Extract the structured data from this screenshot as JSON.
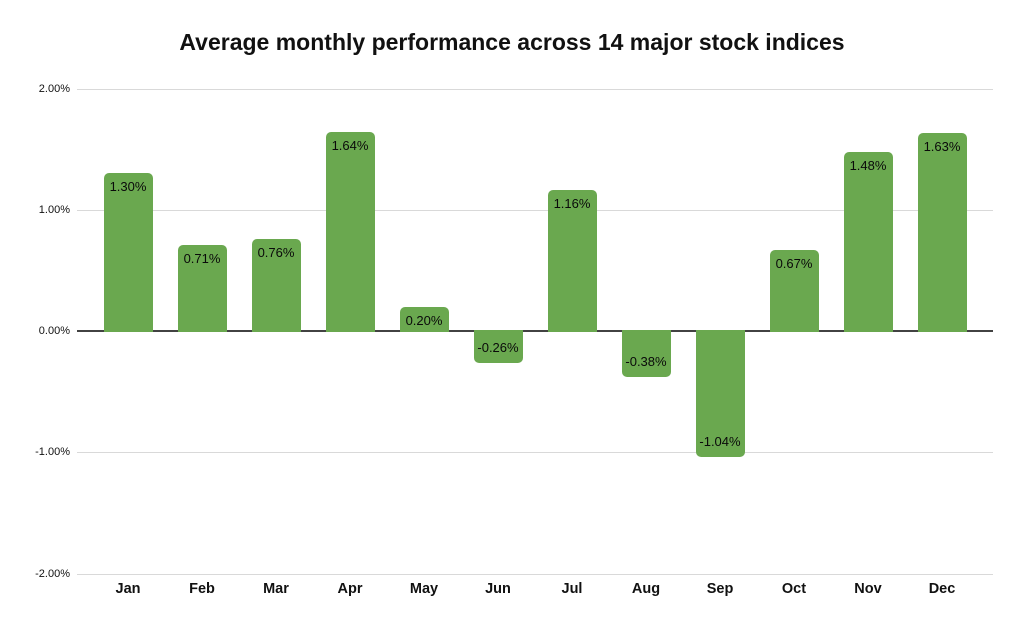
{
  "chart_data": {
    "type": "bar",
    "title": "Average monthly performance across 14 major stock indices",
    "categories": [
      "Jan",
      "Feb",
      "Mar",
      "Apr",
      "May",
      "Jun",
      "Jul",
      "Aug",
      "Sep",
      "Oct",
      "Nov",
      "Dec"
    ],
    "values": [
      1.3,
      0.71,
      0.76,
      1.64,
      0.2,
      -0.26,
      1.16,
      -0.38,
      -1.04,
      0.67,
      1.48,
      1.63
    ],
    "value_labels": [
      "1.30%",
      "0.71%",
      "0.76%",
      "1.64%",
      "0.20%",
      "-0.26%",
      "1.16%",
      "-0.38%",
      "-1.04%",
      "0.67%",
      "1.48%",
      "1.63%"
    ],
    "y_ticks": [
      "2.00%",
      "1.00%",
      "0.00%",
      "-1.00%",
      "-2.00%"
    ],
    "ylim": [
      -2,
      2
    ],
    "xlabel": "",
    "ylabel": "",
    "grid": true,
    "legend": false,
    "bar_color": "#6aa84f",
    "gridline_color": "#d9d9d9",
    "zero_line_color": "#424242",
    "text_color": "#111111",
    "background_color": "#ffffff"
  }
}
